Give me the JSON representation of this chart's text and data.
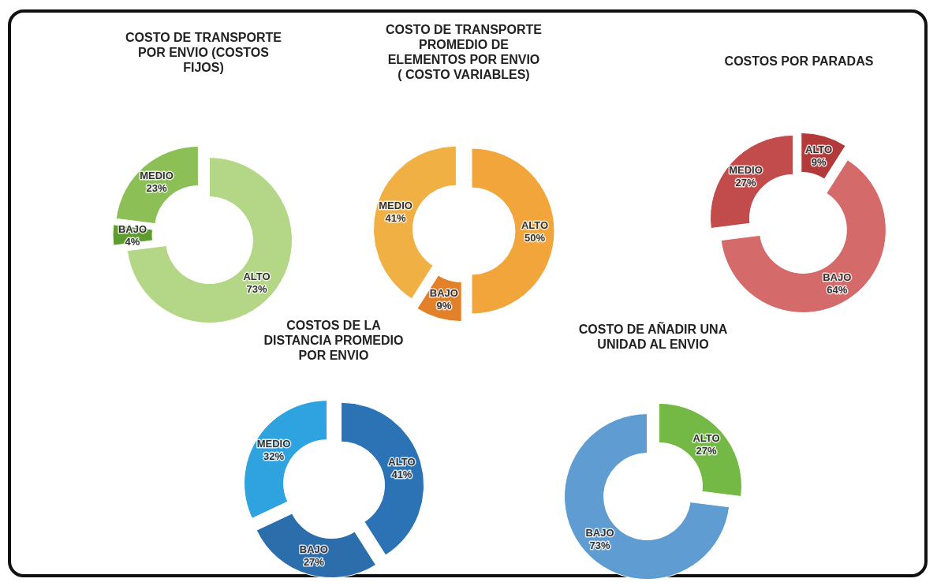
{
  "chart_data": [
    {
      "type": "donut",
      "title": "COSTO DE TRANSPORTE POR ENVIO (COSTOS FIJOS)",
      "categories": [
        "ALTO",
        "BAJO",
        "MEDIO"
      ],
      "values": [
        73,
        4,
        23
      ],
      "value_labels": [
        "73%",
        "4%",
        "23%"
      ],
      "colors": [
        "#b3d687",
        "#5f9c30",
        "#8dbf57"
      ]
    },
    {
      "type": "donut",
      "title": "COSTO DE TRANSPORTE PROMEDIO DE ELEMENTOS POR ENVIO ( COSTO VARIABLES)",
      "categories": [
        "ALTO",
        "BAJO",
        "MEDIO"
      ],
      "values": [
        50,
        9,
        41
      ],
      "value_labels": [
        "50%",
        "9%",
        "41%"
      ],
      "colors": [
        "#f2a53a",
        "#e3812a",
        "#f0b044"
      ]
    },
    {
      "type": "donut",
      "title": "COSTOS POR PARADAS",
      "categories": [
        "ALTO",
        "BAJO",
        "MEDIO"
      ],
      "values": [
        9,
        64,
        27
      ],
      "value_labels": [
        "9%",
        "64%",
        "27%"
      ],
      "colors": [
        "#b33a3a",
        "#d46a6a",
        "#c24c4c"
      ]
    },
    {
      "type": "donut",
      "title": "COSTOS DE LA DISTANCIA PROMEDIO POR ENVIO",
      "categories": [
        "ALTO",
        "BAJO",
        "MEDIO"
      ],
      "values": [
        41,
        27,
        32
      ],
      "value_labels": [
        "41%",
        "27%",
        "32%"
      ],
      "colors": [
        "#2b73b4",
        "#2c6eab",
        "#2fa3e0"
      ]
    },
    {
      "type": "donut",
      "title": "COSTO DE AÑADIR UNA UNIDAD AL ENVIO",
      "categories": [
        "ALTO",
        "BAJO"
      ],
      "values": [
        27,
        73
      ],
      "value_labels": [
        "27%",
        "73%"
      ],
      "colors": [
        "#74b946",
        "#5f9cd2"
      ]
    }
  ]
}
